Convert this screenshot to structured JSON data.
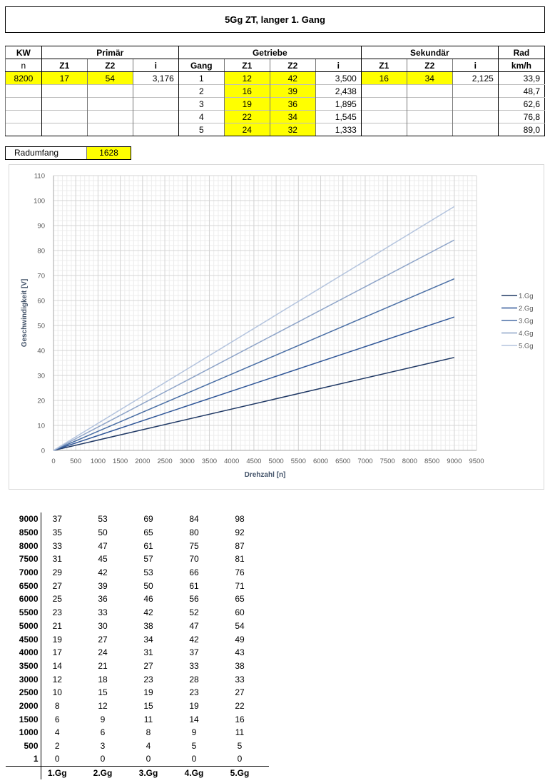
{
  "title": "5Gg ZT, langer 1. Gang",
  "table": {
    "header_groups": [
      "KW",
      "Primär",
      "Getriebe",
      "Sekundär",
      "Rad"
    ],
    "header_cols": [
      "n",
      "Z1",
      "Z2",
      "i",
      "Gang",
      "Z1",
      "Z2",
      "i",
      "Z1",
      "Z2",
      "i",
      "km/h"
    ],
    "primary": {
      "n": "8200",
      "z1": "17",
      "z2": "54",
      "i": "3,176"
    },
    "secondary": {
      "z1": "16",
      "z2": "34",
      "i": "2,125"
    },
    "gears": [
      {
        "gang": "1",
        "z1": "12",
        "z2": "42",
        "i": "3,500",
        "kmh": "33,9"
      },
      {
        "gang": "2",
        "z1": "16",
        "z2": "39",
        "i": "2,438",
        "kmh": "48,7"
      },
      {
        "gang": "3",
        "z1": "19",
        "z2": "36",
        "i": "1,895",
        "kmh": "62,6"
      },
      {
        "gang": "4",
        "z1": "22",
        "z2": "34",
        "i": "1,545",
        "kmh": "76,8"
      },
      {
        "gang": "5",
        "z1": "24",
        "z2": "32",
        "i": "1,333",
        "kmh": "89,0"
      }
    ]
  },
  "radumfang": {
    "label": "Radumfang",
    "value": "1628"
  },
  "chart_data": {
    "type": "line",
    "xlabel": "Drehzahl [n]",
    "ylabel": "Geschwindigkeit [V]",
    "xlim": [
      0,
      9500
    ],
    "ylim": [
      0,
      110
    ],
    "xticks": [
      0,
      500,
      1000,
      1500,
      2000,
      2500,
      3000,
      3500,
      4000,
      4500,
      5000,
      5500,
      6000,
      6500,
      7000,
      7500,
      8000,
      8500,
      9000,
      9500
    ],
    "yticks": [
      0,
      10,
      20,
      30,
      40,
      50,
      60,
      70,
      80,
      90,
      100,
      110
    ],
    "grid": true,
    "legend_position": "right",
    "x": [
      0,
      9000
    ],
    "series": [
      {
        "name": "1.Gg",
        "values": [
          0,
          37.2
        ],
        "color": "#1f3864"
      },
      {
        "name": "2.Gg",
        "values": [
          0,
          53.4
        ],
        "color": "#2e5597"
      },
      {
        "name": "3.Gg",
        "values": [
          0,
          68.7
        ],
        "color": "#4a6fa5"
      },
      {
        "name": "4.Gg",
        "values": [
          0,
          84.2
        ],
        "color": "#8ea4c8"
      },
      {
        "name": "5.Gg",
        "values": [
          0,
          97.6
        ],
        "color": "#b4c4de"
      }
    ]
  },
  "speed_table": {
    "columns": [
      "1.Gg",
      "2.Gg",
      "3.Gg",
      "4.Gg",
      "5.Gg"
    ],
    "rows": [
      {
        "rpm": "9000",
        "values": [
          "37",
          "53",
          "69",
          "84",
          "98"
        ]
      },
      {
        "rpm": "8500",
        "values": [
          "35",
          "50",
          "65",
          "80",
          "92"
        ]
      },
      {
        "rpm": "8000",
        "values": [
          "33",
          "47",
          "61",
          "75",
          "87"
        ]
      },
      {
        "rpm": "7500",
        "values": [
          "31",
          "45",
          "57",
          "70",
          "81"
        ]
      },
      {
        "rpm": "7000",
        "values": [
          "29",
          "42",
          "53",
          "66",
          "76"
        ]
      },
      {
        "rpm": "6500",
        "values": [
          "27",
          "39",
          "50",
          "61",
          "71"
        ]
      },
      {
        "rpm": "6000",
        "values": [
          "25",
          "36",
          "46",
          "56",
          "65"
        ]
      },
      {
        "rpm": "5500",
        "values": [
          "23",
          "33",
          "42",
          "52",
          "60"
        ]
      },
      {
        "rpm": "5000",
        "values": [
          "21",
          "30",
          "38",
          "47",
          "54"
        ]
      },
      {
        "rpm": "4500",
        "values": [
          "19",
          "27",
          "34",
          "42",
          "49"
        ]
      },
      {
        "rpm": "4000",
        "values": [
          "17",
          "24",
          "31",
          "37",
          "43"
        ]
      },
      {
        "rpm": "3500",
        "values": [
          "14",
          "21",
          "27",
          "33",
          "38"
        ]
      },
      {
        "rpm": "3000",
        "values": [
          "12",
          "18",
          "23",
          "28",
          "33"
        ]
      },
      {
        "rpm": "2500",
        "values": [
          "10",
          "15",
          "19",
          "23",
          "27"
        ]
      },
      {
        "rpm": "2000",
        "values": [
          "8",
          "12",
          "15",
          "19",
          "22"
        ]
      },
      {
        "rpm": "1500",
        "values": [
          "6",
          "9",
          "11",
          "14",
          "16"
        ]
      },
      {
        "rpm": "1000",
        "values": [
          "4",
          "6",
          "8",
          "9",
          "11"
        ]
      },
      {
        "rpm": "500",
        "values": [
          "2",
          "3",
          "4",
          "5",
          "5"
        ]
      },
      {
        "rpm": "1",
        "values": [
          "0",
          "0",
          "0",
          "0",
          "0"
        ]
      }
    ]
  }
}
